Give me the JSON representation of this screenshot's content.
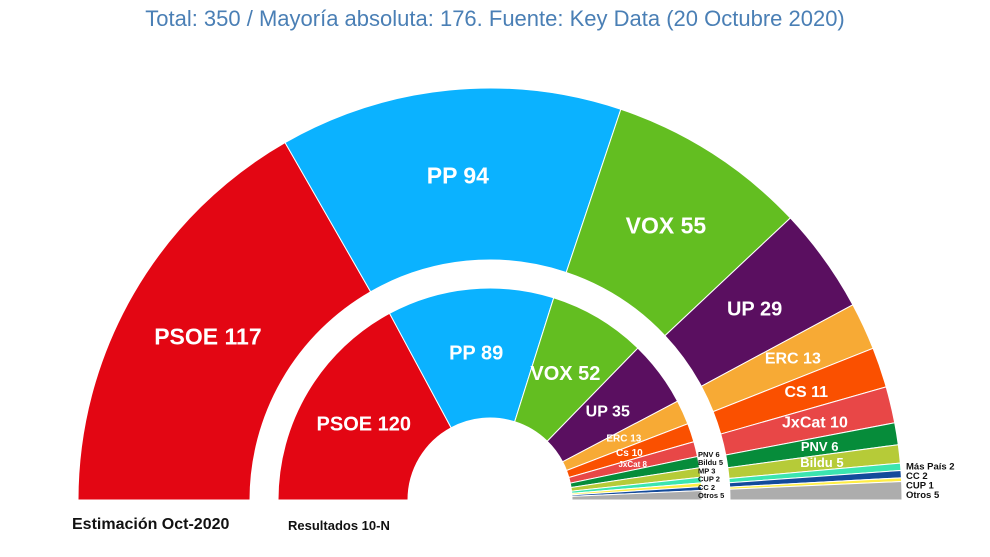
{
  "chart_data": {
    "type": "parliament-donut",
    "title": "Total: 350 / Mayoría absoluta: 176. Fuente: Key Data (20 Octubre 2020)",
    "total_seats": 350,
    "majority": 176,
    "source": "Key Data (20 Octubre 2020)",
    "outer_ring": {
      "name": "Estimación Oct-2020",
      "series": [
        {
          "party": "PSOE",
          "seats": 117,
          "color": "#e30613",
          "label": "PSOE 117",
          "label_color": "#ffffff",
          "label_style": "inside"
        },
        {
          "party": "PP",
          "seats": 94,
          "color": "#0bb2ff",
          "label": "PP 94",
          "label_color": "#ffffff",
          "label_style": "inside"
        },
        {
          "party": "VOX",
          "seats": 55,
          "color": "#63be21",
          "label": "VOX 55",
          "label_color": "#ffffff",
          "label_style": "inside"
        },
        {
          "party": "UP",
          "seats": 29,
          "color": "#5a0f60",
          "label": "UP 29",
          "label_color": "#ffffff",
          "label_style": "inside"
        },
        {
          "party": "ERC",
          "seats": 13,
          "color": "#f7aa35",
          "label": "ERC 13",
          "label_color": "#ffffff",
          "label_style": "inside"
        },
        {
          "party": "CS",
          "seats": 11,
          "color": "#fa5000",
          "label": "CS 11",
          "label_color": "#ffffff",
          "label_style": "inside"
        },
        {
          "party": "JxCat",
          "seats": 10,
          "color": "#e84747",
          "label": "JxCat 10",
          "label_color": "#ffffff",
          "label_style": "inside"
        },
        {
          "party": "PNV",
          "seats": 6,
          "color": "#068c3a",
          "label": "PNV 6",
          "label_color": "#ffffff",
          "label_style": "inside"
        },
        {
          "party": "Bildu",
          "seats": 5,
          "color": "#b6cb38",
          "label": "Bildu 5",
          "label_color": "#ffffff",
          "label_style": "inside"
        },
        {
          "party": "Más País",
          "seats": 2,
          "color": "#3be5b0",
          "label": "Más País 2",
          "label_color": "#111111",
          "label_style": "outside"
        },
        {
          "party": "CC",
          "seats": 2,
          "color": "#134a9b",
          "label": "CC 2",
          "label_color": "#111111",
          "label_style": "outside"
        },
        {
          "party": "CUP",
          "seats": 1,
          "color": "#ffee44",
          "label": "CUP 1",
          "label_color": "#111111",
          "label_style": "outside"
        },
        {
          "party": "Otros",
          "seats": 5,
          "color": "#adadad",
          "label": "Otros 5",
          "label_color": "#111111",
          "label_style": "outside"
        }
      ]
    },
    "inner_ring": {
      "name": "Resultados 10-N",
      "series": [
        {
          "party": "PSOE",
          "seats": 120,
          "color": "#e30613",
          "label": "PSOE 120",
          "label_color": "#ffffff",
          "label_style": "inside"
        },
        {
          "party": "PP",
          "seats": 89,
          "color": "#0bb2ff",
          "label": "PP 89",
          "label_color": "#ffffff",
          "label_style": "inside"
        },
        {
          "party": "VOX",
          "seats": 52,
          "color": "#63be21",
          "label": "VOX 52",
          "label_color": "#ffffff",
          "label_style": "inside"
        },
        {
          "party": "UP",
          "seats": 35,
          "color": "#5a0f60",
          "label": "UP 35",
          "label_color": "#ffffff",
          "label_style": "inside"
        },
        {
          "party": "ERC",
          "seats": 13,
          "color": "#f7aa35",
          "label": "ERC 13",
          "label_color": "#ffffff",
          "label_style": "inside"
        },
        {
          "party": "Cs",
          "seats": 10,
          "color": "#fa5000",
          "label": "Cs 10",
          "label_color": "#ffffff",
          "label_style": "inside"
        },
        {
          "party": "JxCat",
          "seats": 8,
          "color": "#e84747",
          "label": "JxCat 8",
          "label_color": "#ffffff",
          "label_style": "inside"
        },
        {
          "party": "PNV",
          "seats": 6,
          "color": "#068c3a",
          "label": "PNV 6",
          "label_color": "#111111",
          "label_style": "outside"
        },
        {
          "party": "Bildu",
          "seats": 5,
          "color": "#b6cb38",
          "label": "Bildu 5",
          "label_color": "#111111",
          "label_style": "outside"
        },
        {
          "party": "MP",
          "seats": 3,
          "color": "#3be5b0",
          "label": "MP 3",
          "label_color": "#111111",
          "label_style": "outside"
        },
        {
          "party": "CUP",
          "seats": 2,
          "color": "#ffee44",
          "label": "CUP 2",
          "label_color": "#111111",
          "label_style": "outside"
        },
        {
          "party": "CC",
          "seats": 2,
          "color": "#134a9b",
          "label": "CC 2",
          "label_color": "#111111",
          "label_style": "outside"
        },
        {
          "party": "Otros",
          "seats": 5,
          "color": "#adadad",
          "label": "Otros 5",
          "label_color": "#111111",
          "label_style": "outside"
        }
      ]
    }
  }
}
